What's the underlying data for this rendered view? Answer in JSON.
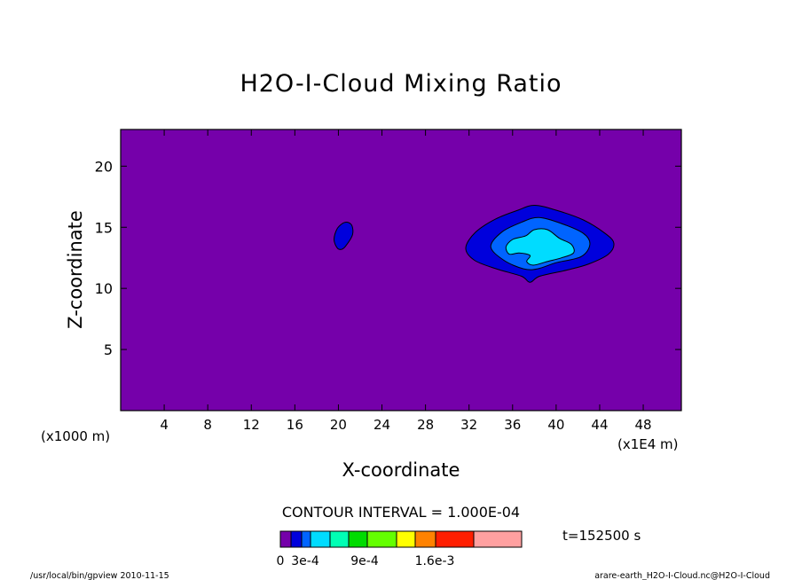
{
  "chart_data": {
    "type": "heatmap",
    "title": "H2O-I-Cloud Mixing Ratio",
    "xlabel": "X-coordinate",
    "ylabel": "Z-coordinate",
    "x_unit_left": "(x1000 m)",
    "x_unit_right": "(x1E4 m)",
    "xlim": [
      0,
      51.5
    ],
    "ylim": [
      0,
      23
    ],
    "xticks": [
      4,
      8,
      12,
      16,
      20,
      24,
      28,
      32,
      36,
      40,
      44,
      48
    ],
    "yticks": [
      5,
      10,
      15,
      20
    ],
    "background_color": "#7500aa",
    "contour_interval": "CONTOUR INTERVAL = 1.000E-04",
    "time": "t=152500 s",
    "colorbar": {
      "colors": [
        "#7500aa",
        "#0000dc",
        "#0064ff",
        "#00dcff",
        "#00ffb4",
        "#00dc00",
        "#64ff00",
        "#ffff00",
        "#ff8200",
        "#ff1e00",
        "#ffa0a0"
      ],
      "labels": [
        "0",
        "3e-4",
        "9e-4",
        "1.6e-3"
      ]
    },
    "contours": [
      {
        "name": "blob-small",
        "level": 1,
        "color": "#0000dc",
        "points": [
          [
            19.9,
            13.3
          ],
          [
            19.6,
            14.0
          ],
          [
            19.9,
            14.9
          ],
          [
            20.6,
            15.4
          ],
          [
            21.2,
            15.2
          ],
          [
            21.3,
            14.4
          ],
          [
            20.7,
            13.5
          ],
          [
            20.3,
            13.2
          ]
        ]
      },
      {
        "name": "cloud-outer",
        "level": 1,
        "color": "#0000dc",
        "points": [
          [
            31.7,
            13.3
          ],
          [
            32.6,
            14.6
          ],
          [
            34.5,
            15.7
          ],
          [
            36.5,
            16.4
          ],
          [
            38.0,
            16.8
          ],
          [
            40.0,
            16.4
          ],
          [
            42.5,
            15.6
          ],
          [
            44.5,
            14.5
          ],
          [
            45.3,
            13.7
          ],
          [
            44.8,
            12.8
          ],
          [
            43.0,
            12.0
          ],
          [
            41.0,
            11.5
          ],
          [
            38.5,
            11.0
          ],
          [
            37.6,
            10.5
          ],
          [
            36.8,
            11.0
          ],
          [
            34.5,
            11.6
          ],
          [
            32.5,
            12.3
          ]
        ]
      },
      {
        "name": "cloud-mid",
        "level": 2,
        "color": "#0064ff",
        "points": [
          [
            34.0,
            13.4
          ],
          [
            35.0,
            14.6
          ],
          [
            36.8,
            15.4
          ],
          [
            38.4,
            15.8
          ],
          [
            40.5,
            15.3
          ],
          [
            42.5,
            14.5
          ],
          [
            43.1,
            13.6
          ],
          [
            42.3,
            12.6
          ],
          [
            40.0,
            12.1
          ],
          [
            38.3,
            11.6
          ],
          [
            37.0,
            11.6
          ],
          [
            35.2,
            12.3
          ]
        ]
      },
      {
        "name": "cloud-inner",
        "level": 3,
        "color": "#00dcff",
        "points": [
          [
            35.4,
            13.4
          ],
          [
            36.0,
            14.0
          ],
          [
            37.2,
            14.3
          ],
          [
            38.0,
            14.8
          ],
          [
            39.2,
            14.8
          ],
          [
            40.3,
            14.1
          ],
          [
            41.4,
            13.6
          ],
          [
            41.6,
            12.9
          ],
          [
            40.5,
            12.5
          ],
          [
            39.2,
            12.2
          ],
          [
            37.9,
            11.9
          ],
          [
            37.3,
            12.2
          ],
          [
            37.6,
            12.7
          ],
          [
            36.6,
            12.9
          ],
          [
            35.7,
            12.8
          ]
        ]
      }
    ],
    "annotation": "/usr/local/bin/gpview  2010-11-15",
    "file_label": "arare-earth_H2O-I-Cloud.nc@H2O-I-Cloud"
  }
}
